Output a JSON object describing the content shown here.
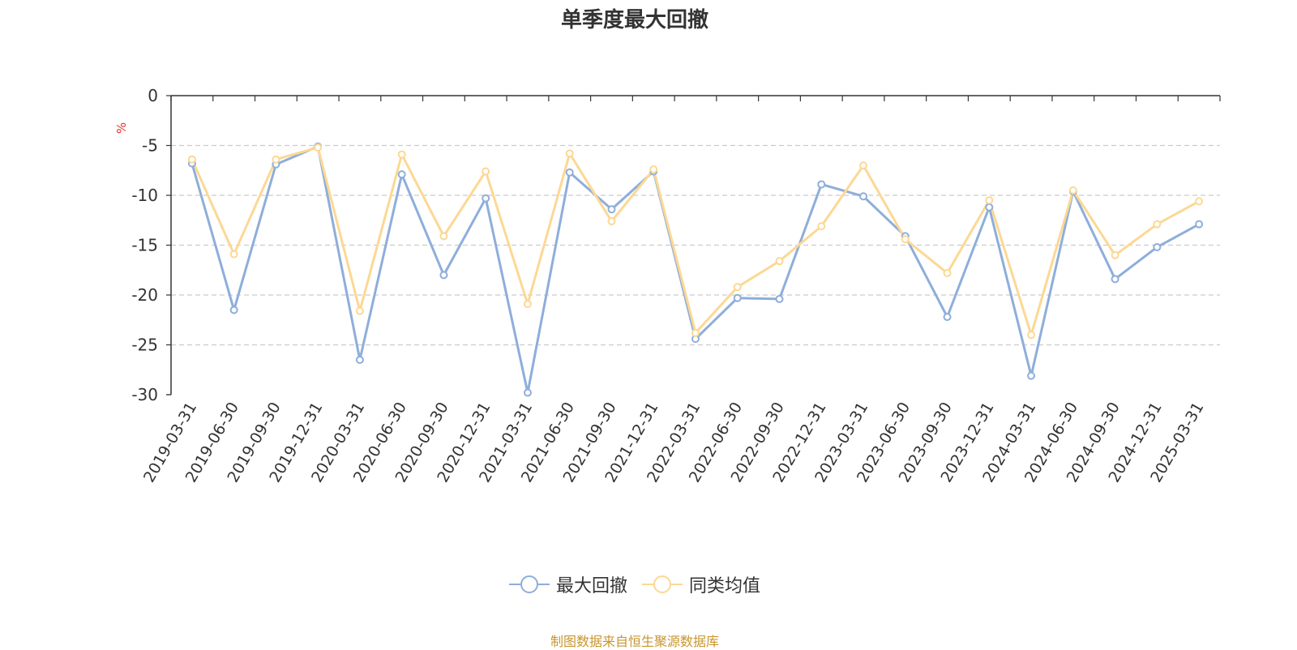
{
  "chart_data": {
    "type": "line",
    "title": "单季度最大回撤",
    "ylabel": "%",
    "xlabel": "",
    "ylim": [
      -30,
      0
    ],
    "yticks": [
      0,
      -5,
      -10,
      -15,
      -20,
      -25,
      -30
    ],
    "grid": true,
    "legend_position": "bottom-center",
    "categories": [
      "2019-03-31",
      "2019-06-30",
      "2019-09-30",
      "2019-12-31",
      "2020-03-31",
      "2020-06-30",
      "2020-09-30",
      "2020-12-31",
      "2021-03-31",
      "2021-06-30",
      "2021-09-30",
      "2021-12-31",
      "2022-03-31",
      "2022-06-30",
      "2022-09-30",
      "2022-12-31",
      "2023-03-31",
      "2023-06-30",
      "2023-09-30",
      "2023-12-31",
      "2024-03-31",
      "2024-06-30",
      "2024-09-30",
      "2024-12-31",
      "2025-03-31"
    ],
    "series": [
      {
        "name": "最大回撤",
        "color": "#8eaedb",
        "values": [
          -6.8,
          -21.5,
          -6.9,
          -5.1,
          -26.5,
          -7.9,
          -18.0,
          -10.3,
          -29.8,
          -7.7,
          -11.4,
          -7.6,
          -24.4,
          -20.3,
          -20.4,
          -8.9,
          -10.1,
          -14.1,
          -22.2,
          -11.2,
          -28.1,
          -9.6,
          -18.4,
          -15.2,
          -12.9
        ]
      },
      {
        "name": "同类均值",
        "color": "#fcd894",
        "values": [
          -6.4,
          -15.9,
          -6.4,
          -5.2,
          -21.6,
          -5.9,
          -14.1,
          -7.6,
          -20.9,
          -5.8,
          -12.6,
          -7.4,
          -23.8,
          -19.2,
          -16.6,
          -13.1,
          -7.0,
          -14.4,
          -17.8,
          -10.5,
          -24.0,
          -9.5,
          -16.0,
          -12.9,
          -10.6
        ]
      }
    ]
  },
  "source": {
    "text": "制图数据来自恒生聚源数据库",
    "color": "#c8962e"
  },
  "colors": {
    "axis": "#333333",
    "grid": "#cccccc",
    "ylabel": "#e8302a",
    "title": "#333333"
  }
}
